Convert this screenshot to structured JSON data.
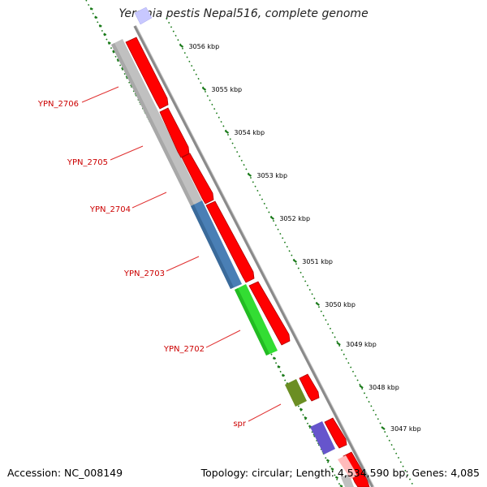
{
  "title": "Yersinia pestis Nepal516, complete genome",
  "footer": {
    "accession": "Accession: NC_008149",
    "summary": "Topology: circular; Length: 4,534,590 bp; Genes: 4,085"
  },
  "scale_ticks": [
    "3056 kbp",
    "3055 kbp",
    "3054 kbp",
    "3053 kbp",
    "3052 kbp",
    "3051 kbp",
    "3050 kbp",
    "3049 kbp",
    "3048 kbp",
    "3047 kbp"
  ],
  "gene_labels": [
    "YPN_2706",
    "YPN_2705",
    "YPN_2704",
    "YPN_2703",
    "YPN_2702",
    "spr"
  ],
  "colors": {
    "backbone": "#8a8a8a",
    "forward_gene": "#ff0000",
    "tick_mark": "#1a7a1a",
    "label_text": "#cc0000",
    "label_line": "#e03030",
    "feature_grey": "#c0c0c0",
    "feature_blue": "#4a7fb5",
    "feature_green": "#33dd33",
    "feature_olive": "#6b8e23",
    "feature_purple": "#6655cc",
    "feature_lavender": "#c8c8ff"
  }
}
